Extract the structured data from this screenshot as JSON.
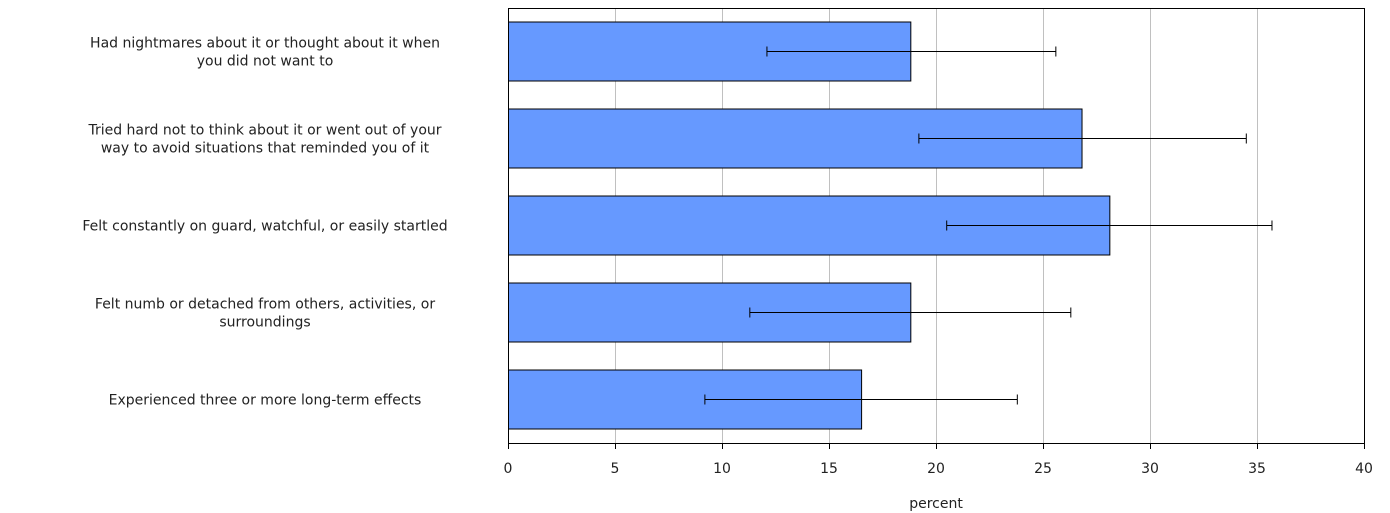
{
  "chart_data": {
    "type": "bar",
    "orientation": "horizontal",
    "categories": [
      [
        "Had nightmares about it or thought about it  when",
        "you did not want to"
      ],
      [
        "Tried hard not to think about it  or went out of your",
        "way to avoid situations that reminded you of it"
      ],
      [
        "Felt constantly on guard, watchful, or easily startled"
      ],
      [
        "Felt numb or detached from others, activities, or",
        "surroundings"
      ],
      [
        "Experienced three or more long-term effects"
      ]
    ],
    "values": [
      18.8,
      26.8,
      28.1,
      18.8,
      16.5
    ],
    "error_low": [
      12.1,
      19.2,
      20.5,
      11.3,
      9.2
    ],
    "error_high": [
      25.6,
      34.5,
      35.7,
      26.3,
      23.8
    ],
    "xlabel": "percent",
    "ylabel": "",
    "xlim": [
      0,
      40
    ],
    "xticks": [
      0,
      5,
      10,
      15,
      20,
      25,
      30,
      35,
      40
    ],
    "grid": "vertical",
    "bar_color": "#6699ff",
    "bar_stroke": "#000000",
    "grid_color": "#c0c0c0"
  }
}
